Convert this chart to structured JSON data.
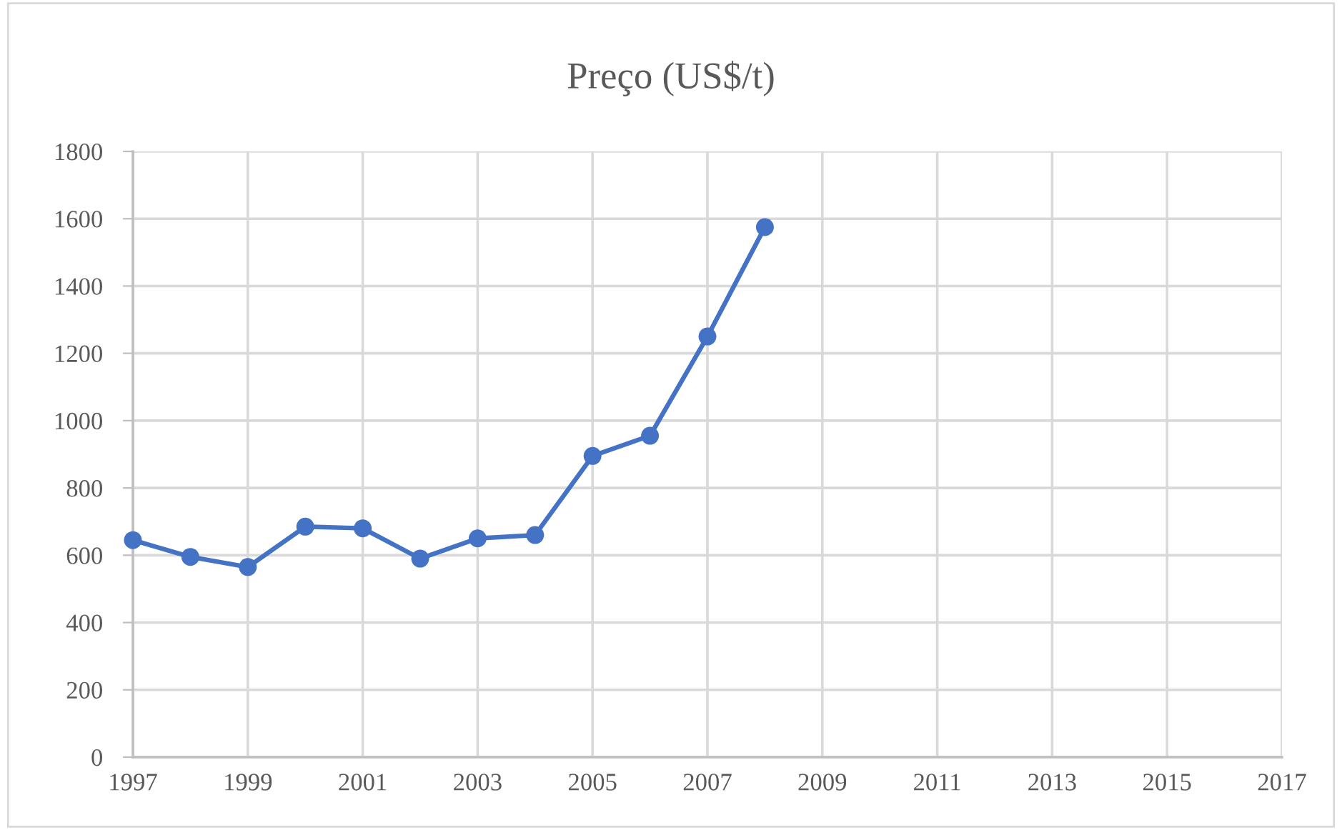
{
  "chart_data": {
    "type": "line",
    "title": "Preço (US$/t)",
    "x": [
      1997,
      1998,
      1999,
      2000,
      2001,
      2002,
      2003,
      2004,
      2005,
      2006,
      2007,
      2008
    ],
    "series": [
      {
        "color": "#4472c4",
        "values": [
          645,
          595,
          565,
          685,
          680,
          590,
          650,
          660,
          895,
          955,
          1250,
          1575
        ]
      }
    ],
    "xlim": [
      1997,
      2017
    ],
    "xticks": [
      1997,
      1999,
      2001,
      2003,
      2005,
      2007,
      2009,
      2011,
      2013,
      2015,
      2017
    ],
    "ylim": [
      0,
      1800
    ],
    "yticks": [
      0,
      200,
      400,
      600,
      800,
      1000,
      1200,
      1400,
      1600,
      1800
    ],
    "grid": true,
    "marker": "circle",
    "line_style": "solid"
  }
}
